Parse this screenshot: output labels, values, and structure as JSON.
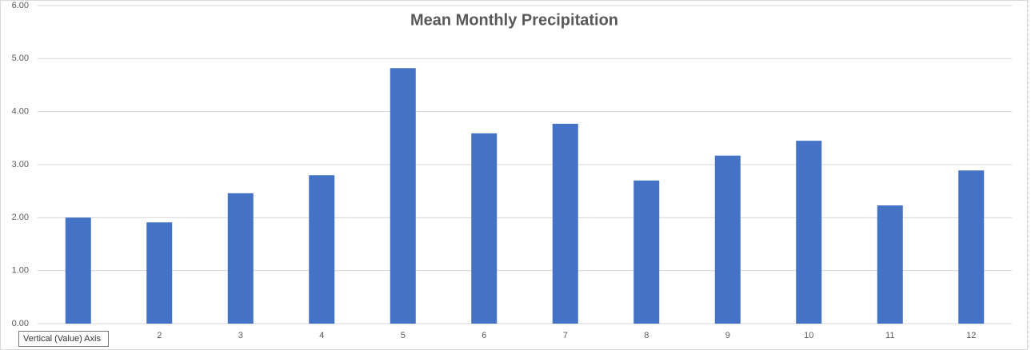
{
  "chart_data": {
    "type": "bar",
    "title": "Mean Monthly Precipitation",
    "categories": [
      null,
      2,
      3,
      4,
      5,
      6,
      7,
      8,
      9,
      10,
      11,
      12
    ],
    "values": [
      2.0,
      1.91,
      2.46,
      2.8,
      4.82,
      3.59,
      3.77,
      2.7,
      3.17,
      3.45,
      2.23,
      2.89
    ],
    "color": "#4472c4",
    "ylim": [
      0,
      6
    ],
    "yticks": [
      {
        "value": 0,
        "label": "0.00"
      },
      {
        "value": 1,
        "label": "1.00"
      },
      {
        "value": 2,
        "label": "2.00"
      },
      {
        "value": 3,
        "label": "3.00"
      },
      {
        "value": 4,
        "label": "4.00"
      },
      {
        "value": 5,
        "label": "5.00"
      },
      {
        "value": 6,
        "label": "6.00"
      }
    ],
    "grid": true,
    "tooltip": "Vertical (Value) Axis"
  }
}
